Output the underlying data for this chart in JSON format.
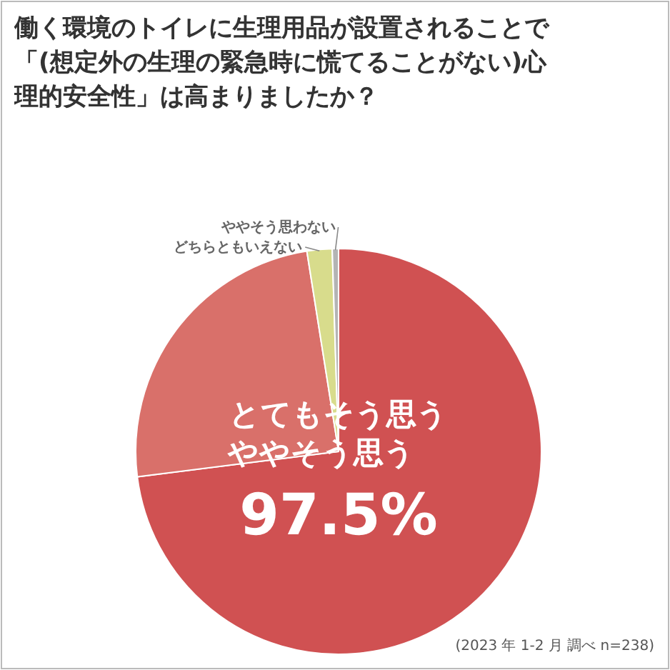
{
  "chart_data": {
    "type": "pie",
    "title": "働く環境のトイレに生理用品が設置されることで「(想定外の生理の緊急時に慌てることがない)心理的安全性」は高まりましたか？",
    "categories": [
      "とてもそう思う",
      "ややそう思う",
      "どちらともいえない",
      "ややそう思わない"
    ],
    "values": [
      73,
      24.5,
      2,
      0.5
    ],
    "colors": [
      "#d05152",
      "#d9706a",
      "#d8dc8c",
      "#b4b4b4"
    ],
    "annotations": [
      "97.5%",
      "(2023 年 1-2 月 調べ n=238)"
    ]
  }
}
